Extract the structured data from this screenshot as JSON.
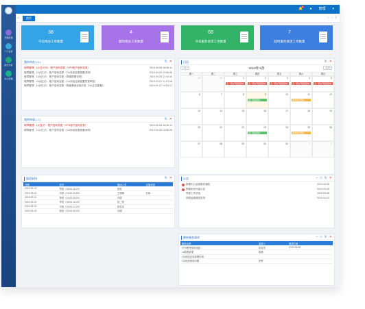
{
  "topbar": {
    "badge": "1",
    "user": "管理"
  },
  "tab": {
    "label": "首页"
  },
  "sidebar": {
    "items": [
      {
        "label": "流程管理",
        "color": "#8a6ad9"
      },
      {
        "label": "个人设置",
        "color": "#3aa8e0"
      },
      {
        "label": "统计分析",
        "color": "#1ca97c"
      },
      {
        "label": "办公管理",
        "color": "#19b38d"
      }
    ]
  },
  "stats": [
    {
      "num": "38",
      "txt": "今日待办工单数量",
      "color": "#35a4e6"
    },
    {
      "num": "4",
      "txt": "超时待办工单数量",
      "color": "#a674e8"
    },
    {
      "num": "68",
      "txt": "今日服务请求工单数量",
      "color": "#33b368"
    },
    {
      "num": "7",
      "txt": "超时服务请求工单数量",
      "color": "#3d7fe0"
    }
  ],
  "todo": {
    "title": "我的待办 ( 6 )",
    "rows": [
      {
        "l": "故障管理 - 1(1日)方向：账户密码变更（VPN账户密码变更）",
        "r": "2019-05-08 16:56:11",
        "red": true
      },
      {
        "l": "故障管理 - 12(4日)方：账户密码变更（OA系统变更配置说明）",
        "r": "2019-04-26 13:56:35",
        "red": false
      },
      {
        "l": "故障管理 - 10(5日)方：账户密码变更（邮箱配置说明）",
        "r": "2019-04-26 11:44:34",
        "red": false
      },
      {
        "l": "故障管理 - 16(6日)方：账户密码变更（OA系统应用配置变更审批）",
        "r": "2019-03-01 11:21:06",
        "red": false
      },
      {
        "l": "故障管理 - 14(8日)方：账户密码变更（规格基础设施开发（OA正式配置））",
        "r": "2019-01-27 14:53:17",
        "red": false
      }
    ]
  },
  "apply": {
    "title": "我的申请 ( 2 )",
    "rows": [
      {
        "l": "故障管理 - 1(1日)方：账户密码变更（VPN账户密码变更）",
        "r": "2019-05-08 16:56:11",
        "red": true
      },
      {
        "l": "故障管理 - 12(4日)方：账户密码变更（OA系统变更配置说明）",
        "r": "2019-04-26 13:56:35",
        "red": false
      }
    ]
  },
  "calendar": {
    "title": "日历",
    "month": "2019年 5月",
    "today_label": "今天",
    "weekdays": [
      "周一",
      "周二",
      "周三",
      "周四",
      "周五",
      "周六",
      "周日"
    ],
    "weeks": [
      [
        {
          "n": "29",
          "dim": true
        },
        {
          "n": "30",
          "dim": true
        },
        {
          "n": "1"
        },
        {
          "n": "2"
        },
        {
          "n": "3"
        },
        {
          "n": "4"
        },
        {
          "n": "5"
        }
      ],
      [
        {
          "n": "6"
        },
        {
          "n": "7"
        },
        {
          "n": "8"
        },
        {
          "n": "9",
          "today": true
        },
        {
          "n": "10"
        },
        {
          "n": "11"
        },
        {
          "n": "12"
        }
      ],
      [
        {
          "n": "13"
        },
        {
          "n": "14"
        },
        {
          "n": "15"
        },
        {
          "n": "16"
        },
        {
          "n": "17"
        },
        {
          "n": "18"
        },
        {
          "n": "19"
        }
      ],
      [
        {
          "n": "20"
        },
        {
          "n": "21"
        },
        {
          "n": "22"
        },
        {
          "n": "23"
        },
        {
          "n": "24"
        },
        {
          "n": "25"
        },
        {
          "n": "26"
        }
      ],
      [
        {
          "n": "27"
        },
        {
          "n": "28"
        },
        {
          "n": "29"
        },
        {
          "n": "30"
        },
        {
          "n": "31"
        },
        {
          "n": "1",
          "dim": true
        },
        {
          "n": "2",
          "dim": true
        }
      ]
    ],
    "events": [
      {
        "week": 0,
        "day": 2,
        "text": "五一劳动节假期安排",
        "color": "#e35b4b"
      },
      {
        "week": 0,
        "day": 3,
        "text": "五一劳动节假期安排",
        "color": "#e35b4b"
      },
      {
        "week": 0,
        "day": 4,
        "text": "五一劳动节假期安排",
        "color": "#e35b4b"
      },
      {
        "week": 0,
        "day": 5,
        "text": "五一劳动节假期安排",
        "color": "#e35b4b"
      },
      {
        "week": 0,
        "day": 6,
        "text": "五一劳动节假期安排",
        "color": "#e35b4b"
      },
      {
        "week": 1,
        "day": 3,
        "text": "部门例会安排",
        "color": "#5cbf6a"
      },
      {
        "week": 1,
        "day": 5,
        "text": "周末值班安排",
        "color": "#f2b74a"
      },
      {
        "week": 3,
        "day": 3,
        "text": "部门例会安排",
        "color": "#5cbf6a"
      },
      {
        "week": 3,
        "day": 5,
        "text": "周末值班安排",
        "color": "#f2b74a"
      }
    ]
  },
  "duty": {
    "title": "值班安排",
    "headers": [
      "日期",
      "班次",
      "值班人员",
      "当值状态"
    ],
    "rows": [
      [
        "2019-05-01",
        "早班（08:00-16:00）",
        "张松",
        ""
      ],
      [
        "2019-05-01",
        "中班（16:00-24:00）",
        "王明峰",
        "在岗"
      ],
      [
        "2019-05-01",
        "夜班（00:00-08:00）",
        "刘超",
        ""
      ],
      [
        "2019-05-02",
        "早班（08:00-16:00）",
        "张二勤",
        ""
      ],
      [
        "2019-05-02",
        "中班（16:00-24:00）",
        "张名亮",
        ""
      ],
      [
        "2019-05-02",
        "夜班（00:00-08:00）",
        "刘超",
        ""
      ]
    ]
  },
  "notice": {
    "title": "公告",
    "rows": [
      {
        "l": "数据中心运维服务通知",
        "r": "2019-05-08",
        "icon": true
      },
      {
        "l": "邮箱系统升级公告",
        "r": "2019-05-08",
        "icon": true
      },
      {
        "l": "季度工作总结",
        "r": "2019-05-08",
        "icon": false
      },
      {
        "l": "网络运维值班安排",
        "r": "2019-04-02",
        "icon": false
      }
    ]
  },
  "service": {
    "title": "最新服务请求",
    "headers": [
      "服务名称",
      "请求人",
      "请求时间"
    ],
    "rows": [
      [
        "VPN账号密码找回",
        "张名亮",
        "2019-05-08"
      ],
      [
        "oa权限变更",
        "吴楠",
        ""
      ],
      [
        "OA系统应用部署申请",
        "",
        ""
      ],
      [
        "OA系统使用问题",
        "张楚",
        ""
      ]
    ]
  }
}
